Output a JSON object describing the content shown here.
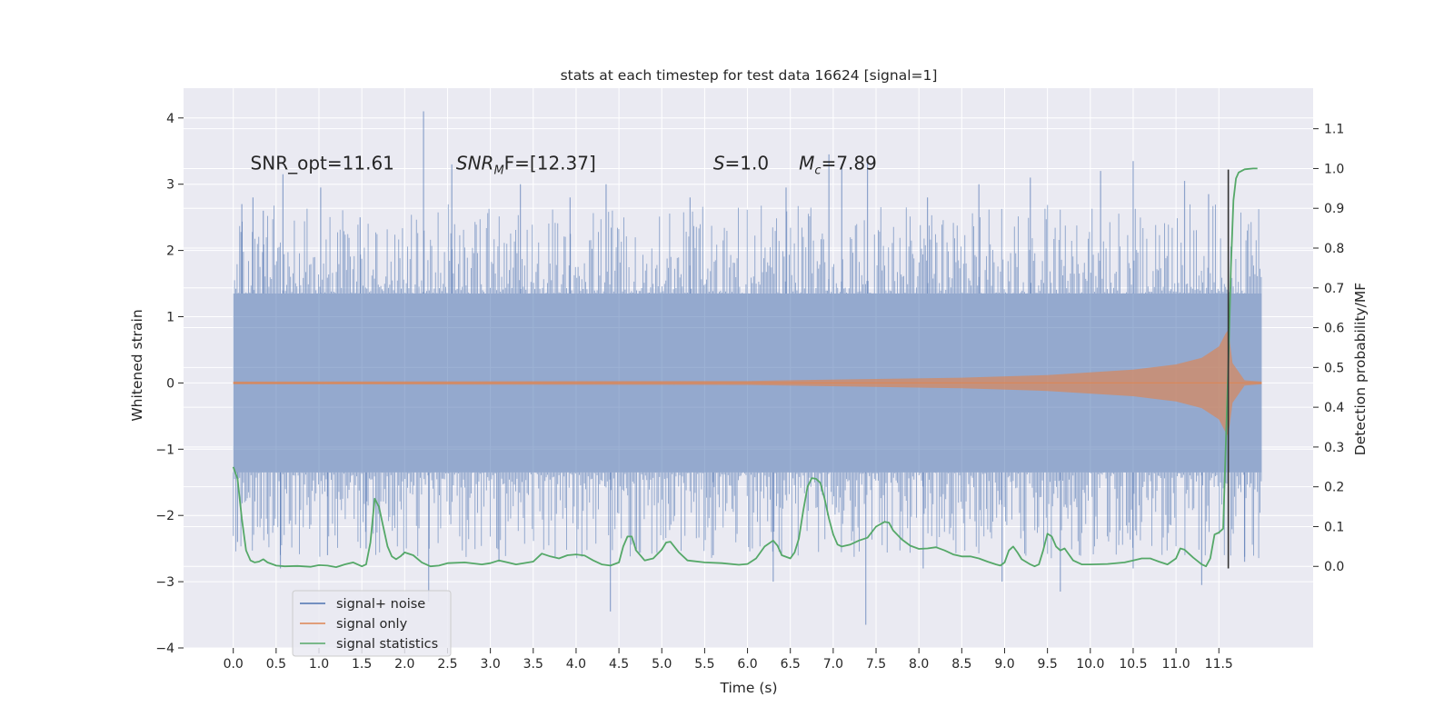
{
  "chart_data": {
    "type": "line",
    "title": "stats at each timestep for test data 16624 [signal=1]",
    "xlabel": "Time (s)",
    "ylabel": "Whitened strain",
    "y2label": "Detection probability/MF",
    "xlim": [
      -0.58,
      12.6
    ],
    "ylim": [
      -4.0,
      4.45
    ],
    "y2lim": [
      -0.205,
      1.202
    ],
    "xticks": [
      0.0,
      0.5,
      1.0,
      1.5,
      2.0,
      2.5,
      3.0,
      3.5,
      4.0,
      4.5,
      5.0,
      5.5,
      6.0,
      6.5,
      7.0,
      7.5,
      8.0,
      8.5,
      9.0,
      9.5,
      10.0,
      10.5,
      11.0,
      11.5
    ],
    "xtick_labels": [
      "0.0",
      "0.5",
      "1.0",
      "1.5",
      "2.0",
      "2.5",
      "3.0",
      "3.5",
      "4.0",
      "4.5",
      "5.0",
      "5.5",
      "6.0",
      "6.5",
      "7.0",
      "7.5",
      "8.0",
      "8.5",
      "9.0",
      "9.5",
      "10.0",
      "10.5",
      "11.0",
      "11.5"
    ],
    "yticks": [
      -4,
      -3,
      -2,
      -1,
      0,
      1,
      2,
      3,
      4
    ],
    "ytick_labels": [
      "−4",
      "−3",
      "−2",
      "−1",
      "0",
      "1",
      "2",
      "3",
      "4"
    ],
    "y2ticks": [
      0.0,
      0.1,
      0.2,
      0.3,
      0.4,
      0.5,
      0.6,
      0.7,
      0.8,
      0.9,
      1.0,
      1.1
    ],
    "y2tick_labels": [
      "0.0",
      "0.1",
      "0.2",
      "0.3",
      "0.4",
      "0.5",
      "0.6",
      "0.7",
      "0.8",
      "0.9",
      "1.0",
      "1.1"
    ],
    "grid": true,
    "legend_position": "bottom-left",
    "annotations": [
      {
        "text": "SNR_opt=11.61",
        "x": 0.2,
        "y": 3.32
      },
      {
        "base": "SNR",
        "sub": "M",
        "rest": "F=[12.37]",
        "x": 2.6,
        "y": 3.32
      },
      {
        "base": "S",
        "rest": "=1.0",
        "x": 5.6,
        "y": 3.32
      },
      {
        "base": "M",
        "sub": "c",
        "rest": "=7.89",
        "x": 6.6,
        "y": 3.32
      }
    ],
    "marker_line": {
      "x": 11.61,
      "y_from": -2.8,
      "y_to": 3.22
    },
    "series": [
      {
        "name": "signal+ noise",
        "color": "#4c72b0",
        "kind": "noise_band",
        "t_start": 0.0,
        "t_end": 12.0,
        "core_band": 1.35,
        "upper_peaks": [
          [
            0.1,
            2.7
          ],
          [
            0.23,
            2.8
          ],
          [
            0.35,
            2.6
          ],
          [
            0.58,
            3.15
          ],
          [
            1.02,
            2.95
          ],
          [
            1.48,
            2.5
          ],
          [
            2.22,
            4.1
          ],
          [
            2.55,
            3.3
          ],
          [
            3.35,
            3.0
          ],
          [
            3.93,
            2.8
          ],
          [
            4.35,
            3.0
          ],
          [
            5.33,
            2.8
          ],
          [
            6.45,
            2.95
          ],
          [
            6.95,
            3.45
          ],
          [
            7.1,
            3.3
          ],
          [
            7.4,
            3.4
          ],
          [
            8.1,
            2.8
          ],
          [
            8.7,
            3.0
          ],
          [
            9.3,
            3.1
          ],
          [
            10.12,
            3.2
          ],
          [
            10.5,
            3.35
          ],
          [
            11.1,
            3.05
          ],
          [
            11.38,
            2.85
          ]
        ],
        "lower_peaks": [
          [
            0.05,
            -2.4
          ],
          [
            0.55,
            -2.8
          ],
          [
            1.1,
            -2.6
          ],
          [
            1.55,
            -2.5
          ],
          [
            2.28,
            -3.3
          ],
          [
            3.1,
            -2.7
          ],
          [
            4.4,
            -3.45
          ],
          [
            5.6,
            -2.6
          ],
          [
            6.3,
            -3.0
          ],
          [
            7.38,
            -3.65
          ],
          [
            8.05,
            -2.8
          ],
          [
            8.97,
            -3.0
          ],
          [
            9.65,
            -3.15
          ],
          [
            10.5,
            -2.8
          ],
          [
            11.3,
            -3.05
          ],
          [
            11.8,
            -2.7
          ]
        ]
      },
      {
        "name": "signal only",
        "color": "#dd8452",
        "kind": "chirp",
        "t_start": 0.0,
        "t_end": 12.0,
        "t_merge": 11.61,
        "envelope": [
          [
            0.0,
            0.02
          ],
          [
            6.0,
            0.03
          ],
          [
            7.5,
            0.06
          ],
          [
            8.5,
            0.08
          ],
          [
            9.5,
            0.12
          ],
          [
            10.5,
            0.2
          ],
          [
            11.0,
            0.28
          ],
          [
            11.3,
            0.38
          ],
          [
            11.5,
            0.55
          ],
          [
            11.58,
            0.75
          ],
          [
            11.61,
            0.8
          ],
          [
            11.66,
            0.3
          ],
          [
            11.8,
            0.04
          ],
          [
            12.0,
            0.02
          ]
        ]
      },
      {
        "name": "signal statistics",
        "color": "#55a868",
        "kind": "line",
        "points": [
          [
            0.0,
            0.25
          ],
          [
            0.05,
            0.22
          ],
          [
            0.1,
            0.12
          ],
          [
            0.15,
            0.04
          ],
          [
            0.2,
            0.015
          ],
          [
            0.25,
            0.01
          ],
          [
            0.3,
            0.012
          ],
          [
            0.35,
            0.018
          ],
          [
            0.4,
            0.01
          ],
          [
            0.5,
            0.002
          ],
          [
            0.6,
            0.0
          ],
          [
            0.75,
            0.001
          ],
          [
            0.9,
            -0.001
          ],
          [
            1.0,
            0.003
          ],
          [
            1.1,
            0.002
          ],
          [
            1.2,
            -0.002
          ],
          [
            1.3,
            0.005
          ],
          [
            1.4,
            0.01
          ],
          [
            1.45,
            0.005
          ],
          [
            1.5,
            0.0
          ],
          [
            1.55,
            0.005
          ],
          [
            1.6,
            0.06
          ],
          [
            1.65,
            0.17
          ],
          [
            1.7,
            0.15
          ],
          [
            1.75,
            0.1
          ],
          [
            1.8,
            0.05
          ],
          [
            1.85,
            0.025
          ],
          [
            1.9,
            0.018
          ],
          [
            1.95,
            0.025
          ],
          [
            2.0,
            0.035
          ],
          [
            2.1,
            0.028
          ],
          [
            2.2,
            0.01
          ],
          [
            2.3,
            0.0
          ],
          [
            2.4,
            0.002
          ],
          [
            2.5,
            0.008
          ],
          [
            2.7,
            0.01
          ],
          [
            2.9,
            0.005
          ],
          [
            3.0,
            0.008
          ],
          [
            3.1,
            0.015
          ],
          [
            3.2,
            0.01
          ],
          [
            3.3,
            0.005
          ],
          [
            3.5,
            0.012
          ],
          [
            3.6,
            0.032
          ],
          [
            3.7,
            0.025
          ],
          [
            3.8,
            0.02
          ],
          [
            3.9,
            0.028
          ],
          [
            4.0,
            0.03
          ],
          [
            4.1,
            0.027
          ],
          [
            4.2,
            0.015
          ],
          [
            4.3,
            0.005
          ],
          [
            4.4,
            0.002
          ],
          [
            4.5,
            0.01
          ],
          [
            4.55,
            0.05
          ],
          [
            4.6,
            0.075
          ],
          [
            4.65,
            0.075
          ],
          [
            4.7,
            0.04
          ],
          [
            4.8,
            0.015
          ],
          [
            4.9,
            0.02
          ],
          [
            5.0,
            0.042
          ],
          [
            5.05,
            0.06
          ],
          [
            5.1,
            0.062
          ],
          [
            5.2,
            0.035
          ],
          [
            5.3,
            0.015
          ],
          [
            5.5,
            0.01
          ],
          [
            5.7,
            0.008
          ],
          [
            5.9,
            0.004
          ],
          [
            6.0,
            0.006
          ],
          [
            6.1,
            0.02
          ],
          [
            6.2,
            0.05
          ],
          [
            6.3,
            0.065
          ],
          [
            6.35,
            0.052
          ],
          [
            6.4,
            0.028
          ],
          [
            6.5,
            0.02
          ],
          [
            6.55,
            0.035
          ],
          [
            6.6,
            0.07
          ],
          [
            6.65,
            0.14
          ],
          [
            6.7,
            0.2
          ],
          [
            6.75,
            0.222
          ],
          [
            6.8,
            0.22
          ],
          [
            6.85,
            0.21
          ],
          [
            6.9,
            0.17
          ],
          [
            6.95,
            0.12
          ],
          [
            7.0,
            0.08
          ],
          [
            7.05,
            0.055
          ],
          [
            7.1,
            0.05
          ],
          [
            7.2,
            0.055
          ],
          [
            7.3,
            0.065
          ],
          [
            7.4,
            0.072
          ],
          [
            7.5,
            0.1
          ],
          [
            7.6,
            0.112
          ],
          [
            7.65,
            0.11
          ],
          [
            7.7,
            0.09
          ],
          [
            7.8,
            0.068
          ],
          [
            7.9,
            0.052
          ],
          [
            8.0,
            0.044
          ],
          [
            8.1,
            0.045
          ],
          [
            8.2,
            0.048
          ],
          [
            8.3,
            0.04
          ],
          [
            8.4,
            0.03
          ],
          [
            8.5,
            0.025
          ],
          [
            8.6,
            0.025
          ],
          [
            8.7,
            0.02
          ],
          [
            8.8,
            0.012
          ],
          [
            8.9,
            0.005
          ],
          [
            8.95,
            0.002
          ],
          [
            9.0,
            0.01
          ],
          [
            9.05,
            0.04
          ],
          [
            9.1,
            0.05
          ],
          [
            9.15,
            0.035
          ],
          [
            9.2,
            0.018
          ],
          [
            9.3,
            0.005
          ],
          [
            9.35,
            0.0
          ],
          [
            9.4,
            0.005
          ],
          [
            9.45,
            0.04
          ],
          [
            9.5,
            0.082
          ],
          [
            9.55,
            0.075
          ],
          [
            9.6,
            0.05
          ],
          [
            9.65,
            0.04
          ],
          [
            9.7,
            0.045
          ],
          [
            9.75,
            0.03
          ],
          [
            9.8,
            0.015
          ],
          [
            9.9,
            0.005
          ],
          [
            10.0,
            0.005
          ],
          [
            10.2,
            0.006
          ],
          [
            10.4,
            0.01
          ],
          [
            10.5,
            0.015
          ],
          [
            10.6,
            0.02
          ],
          [
            10.7,
            0.02
          ],
          [
            10.8,
            0.012
          ],
          [
            10.9,
            0.005
          ],
          [
            11.0,
            0.02
          ],
          [
            11.05,
            0.045
          ],
          [
            11.1,
            0.042
          ],
          [
            11.2,
            0.022
          ],
          [
            11.3,
            0.005
          ],
          [
            11.35,
            0.0
          ],
          [
            11.4,
            0.02
          ],
          [
            11.45,
            0.08
          ],
          [
            11.5,
            0.085
          ],
          [
            11.55,
            0.095
          ],
          [
            11.58,
            0.3
          ],
          [
            11.61,
            0.5
          ],
          [
            11.64,
            0.75
          ],
          [
            11.67,
            0.92
          ],
          [
            11.7,
            0.975
          ],
          [
            11.73,
            0.99
          ],
          [
            11.8,
            0.998
          ],
          [
            11.9,
            1.0
          ],
          [
            11.95,
            1.0
          ]
        ]
      }
    ]
  }
}
